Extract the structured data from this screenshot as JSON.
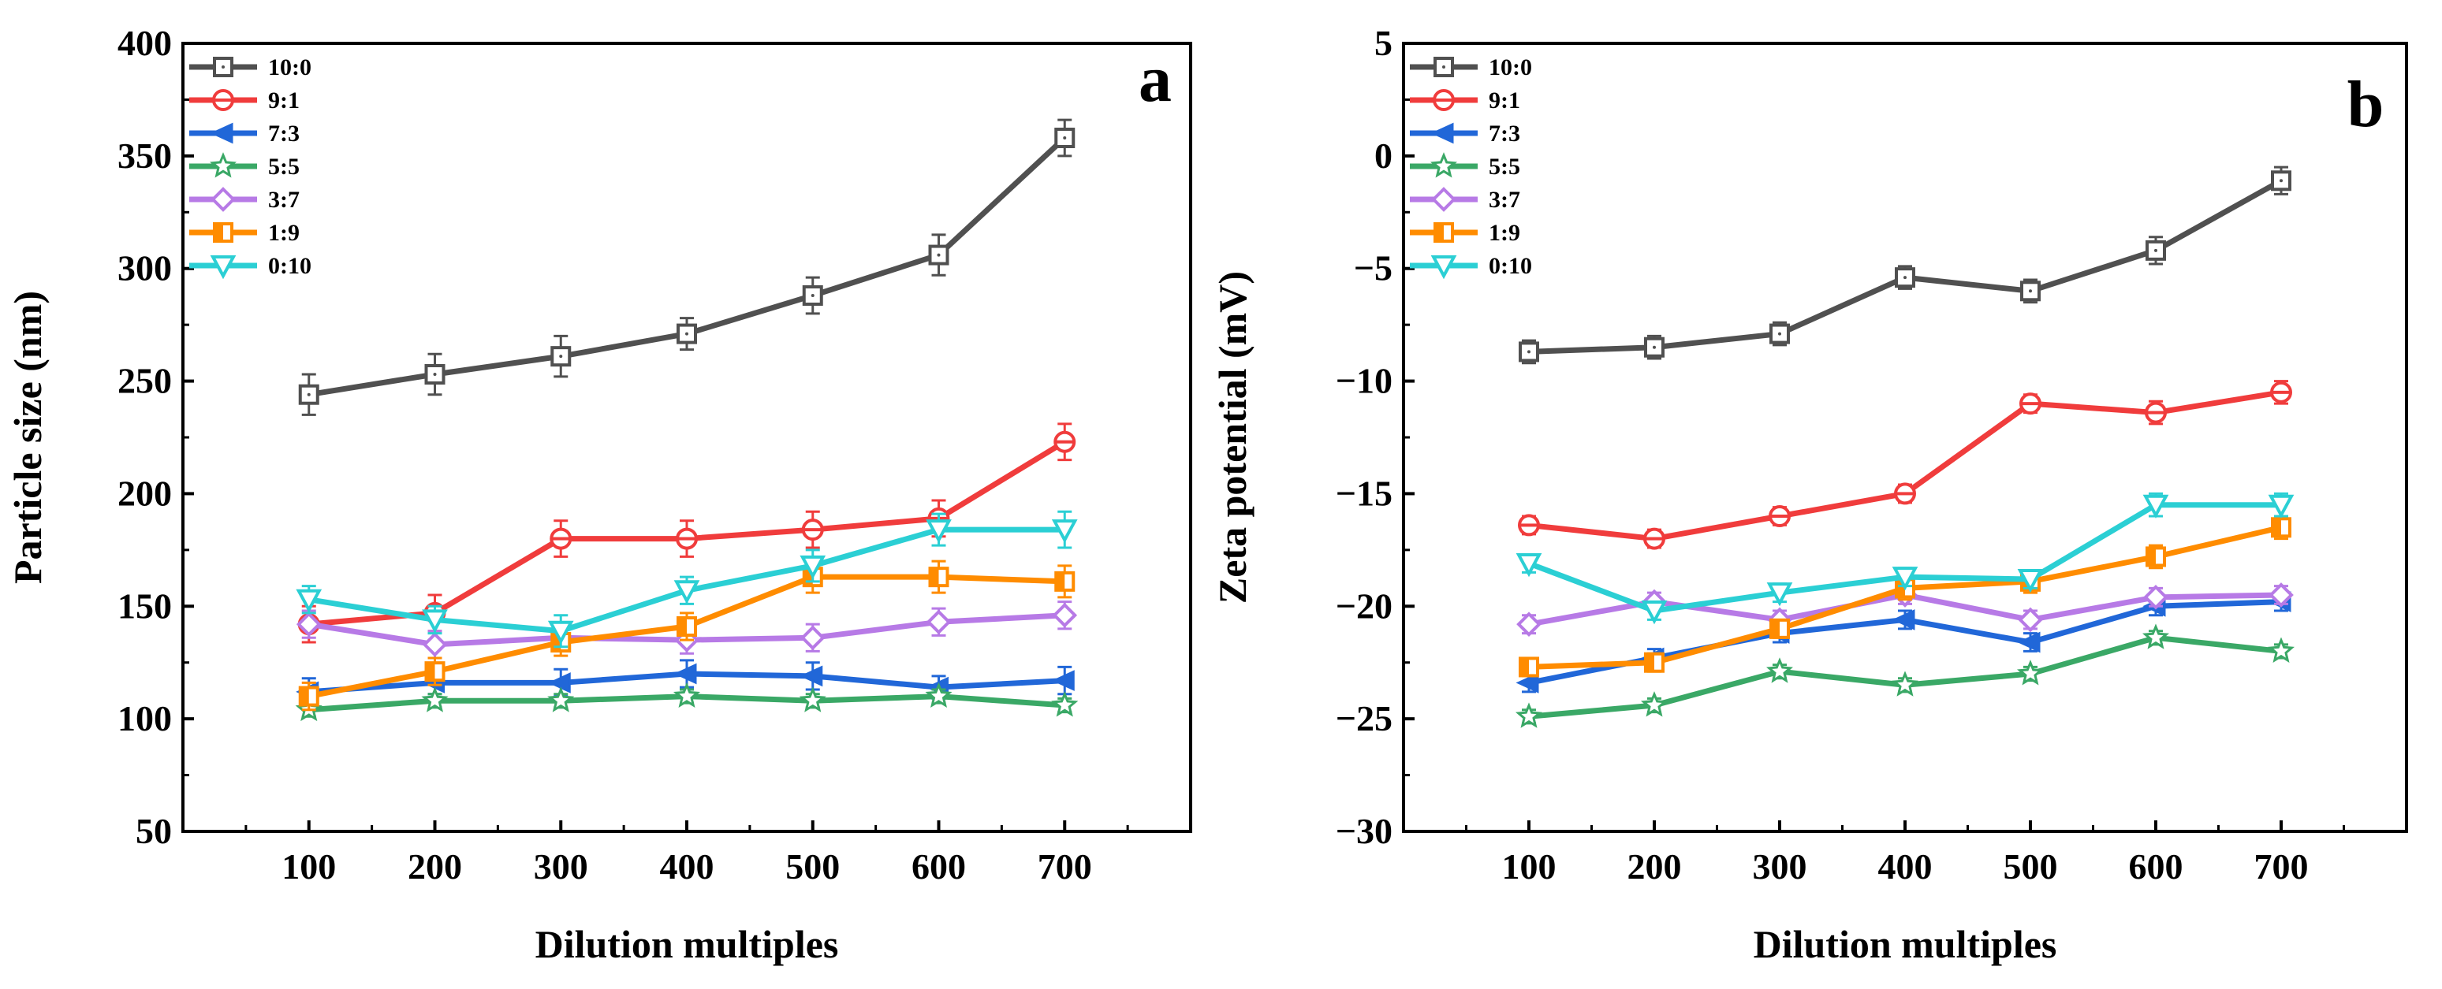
{
  "chart_data": [
    {
      "type": "line",
      "panel_label": "a",
      "title": "",
      "xlabel": "Dilution multiples",
      "ylabel": "Particle size (nm)",
      "x": [
        100,
        200,
        300,
        400,
        500,
        600,
        700
      ],
      "x_ticks": [
        "100",
        "200",
        "300",
        "400",
        "500",
        "600",
        "700"
      ],
      "xlim": [
        0,
        800
      ],
      "ylim": [
        50,
        400
      ],
      "y_ticks": [
        "50",
        "100",
        "150",
        "200",
        "250",
        "300",
        "350",
        "400"
      ],
      "legend_position": "top-left",
      "series": [
        {
          "name": "10:0",
          "color": "#505050",
          "marker": "square",
          "values": [
            244,
            253,
            261,
            271,
            288,
            306,
            358
          ],
          "errors": [
            9,
            9,
            9,
            7,
            8,
            9,
            8
          ]
        },
        {
          "name": "9:1",
          "color": "#f03c3c",
          "marker": "circle",
          "values": [
            142,
            147,
            180,
            180,
            184,
            189,
            223
          ],
          "errors": [
            8,
            8,
            8,
            8,
            8,
            8,
            8
          ]
        },
        {
          "name": "7:3",
          "color": "#2167d8",
          "marker": "triangle-left",
          "values": [
            112,
            116,
            116,
            120,
            119,
            114,
            117
          ],
          "errors": [
            6,
            5,
            6,
            6,
            6,
            5,
            6
          ]
        },
        {
          "name": "5:5",
          "color": "#3aa866",
          "marker": "star",
          "values": [
            104,
            108,
            108,
            110,
            108,
            110,
            106
          ],
          "errors": [
            3,
            3,
            3,
            3,
            3,
            3,
            3
          ]
        },
        {
          "name": "3:7",
          "color": "#b77ae6",
          "marker": "diamond",
          "values": [
            142,
            133,
            136,
            135,
            136,
            143,
            146
          ],
          "errors": [
            6,
            6,
            5,
            6,
            6,
            6,
            6
          ]
        },
        {
          "name": "1:9",
          "color": "#ff8c00",
          "marker": "square-half",
          "values": [
            110,
            121,
            134,
            141,
            163,
            163,
            161
          ],
          "errors": [
            6,
            6,
            6,
            6,
            7,
            7,
            7
          ]
        },
        {
          "name": "0:10",
          "color": "#2bcfd4",
          "marker": "triangle-down",
          "values": [
            153,
            144,
            139,
            157,
            168,
            184,
            184
          ],
          "errors": [
            6,
            6,
            7,
            6,
            7,
            7,
            8
          ]
        }
      ]
    },
    {
      "type": "line",
      "panel_label": "b",
      "title": "",
      "xlabel": "Dilution multiples",
      "ylabel": "Zeta potential (mV)",
      "x": [
        100,
        200,
        300,
        400,
        500,
        600,
        700
      ],
      "x_ticks": [
        "100",
        "200",
        "300",
        "400",
        "500",
        "600",
        "700"
      ],
      "xlim": [
        0,
        800
      ],
      "ylim": [
        -30,
        5
      ],
      "y_ticks": [
        "−30",
        "−25",
        "−20",
        "−15",
        "−10",
        "−5",
        "0",
        "5"
      ],
      "legend_position": "top-left",
      "series": [
        {
          "name": "10:0",
          "color": "#505050",
          "marker": "square",
          "values": [
            -8.7,
            -8.5,
            -7.9,
            -5.4,
            -6.0,
            -4.2,
            -1.1
          ],
          "errors": [
            0.5,
            0.5,
            0.5,
            0.5,
            0.5,
            0.6,
            0.6
          ]
        },
        {
          "name": "9:1",
          "color": "#f03c3c",
          "marker": "circle",
          "values": [
            -16.4,
            -17.0,
            -16.0,
            -15.0,
            -11.0,
            -11.4,
            -10.5
          ],
          "errors": [
            0.4,
            0.4,
            0.4,
            0.4,
            0.4,
            0.5,
            0.5
          ]
        },
        {
          "name": "7:3",
          "color": "#2167d8",
          "marker": "triangle-left",
          "values": [
            -23.4,
            -22.3,
            -21.2,
            -20.6,
            -21.6,
            -20.0,
            -19.8
          ],
          "errors": [
            0.4,
            0.4,
            0.4,
            0.4,
            0.4,
            0.4,
            0.4
          ]
        },
        {
          "name": "5:5",
          "color": "#3aa866",
          "marker": "star",
          "values": [
            -24.9,
            -24.4,
            -22.9,
            -23.5,
            -23.0,
            -21.4,
            -22.0
          ],
          "errors": [
            0.3,
            0.3,
            0.3,
            0.3,
            0.3,
            0.3,
            0.3
          ]
        },
        {
          "name": "3:7",
          "color": "#b77ae6",
          "marker": "diamond",
          "values": [
            -20.8,
            -19.8,
            -20.6,
            -19.5,
            -20.6,
            -19.6,
            -19.5
          ],
          "errors": [
            0.4,
            0.4,
            0.4,
            0.4,
            0.4,
            0.4,
            0.4
          ]
        },
        {
          "name": "1:9",
          "color": "#ff8c00",
          "marker": "square-half",
          "values": [
            -22.7,
            -22.5,
            -21.0,
            -19.2,
            -18.9,
            -17.8,
            -16.5
          ],
          "errors": [
            0.4,
            0.4,
            0.4,
            0.5,
            0.5,
            0.5,
            0.5
          ]
        },
        {
          "name": "0:10",
          "color": "#2bcfd4",
          "marker": "triangle-down",
          "values": [
            -18.1,
            -20.2,
            -19.4,
            -18.7,
            -18.8,
            -15.5,
            -15.5
          ],
          "errors": [
            0.4,
            0.4,
            0.4,
            0.4,
            0.4,
            0.5,
            0.5
          ]
        }
      ]
    }
  ]
}
